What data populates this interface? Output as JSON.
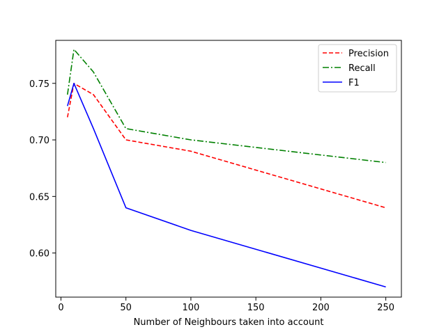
{
  "chart_data": {
    "type": "line",
    "title": "",
    "xlabel": "Number of Neighbours taken into account",
    "ylabel": "",
    "x": [
      5,
      10,
      25,
      50,
      100,
      250
    ],
    "xlim": [
      -4,
      262
    ],
    "ylim": [
      0.561,
      0.788
    ],
    "xticks": [
      0,
      50,
      100,
      150,
      200,
      250
    ],
    "yticks": [
      0.6,
      0.65,
      0.7,
      0.75
    ],
    "xtick_labels": [
      "0",
      "50",
      "100",
      "150",
      "200",
      "250"
    ],
    "ytick_labels": [
      "0.60",
      "0.65",
      "0.70",
      "0.75"
    ],
    "grid": false,
    "legend_position": "top-right",
    "series": [
      {
        "name": "Precision",
        "color": "#ff0000",
        "dash": "dashed",
        "values": [
          0.72,
          0.75,
          0.74,
          0.7,
          0.69,
          0.64
        ]
      },
      {
        "name": "Recall",
        "color": "#008000",
        "dash": "dashdot",
        "values": [
          0.74,
          0.78,
          0.76,
          0.71,
          0.7,
          0.68
        ]
      },
      {
        "name": "F1",
        "color": "#0000ff",
        "dash": "solid",
        "values": [
          0.73,
          0.75,
          0.71,
          0.64,
          0.62,
          0.57
        ]
      }
    ]
  }
}
